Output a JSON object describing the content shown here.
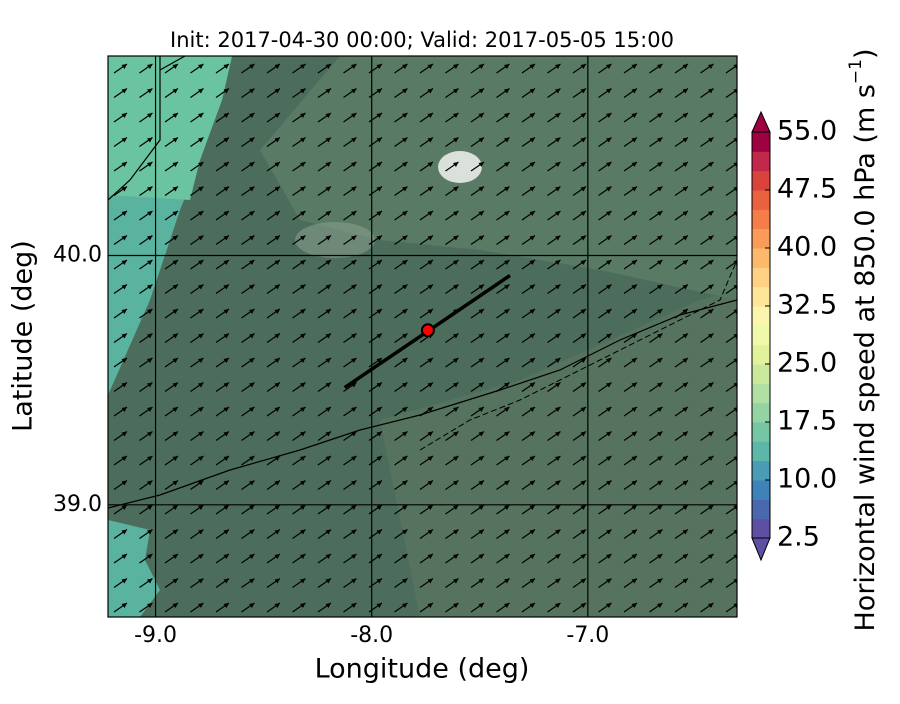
{
  "chart_data": {
    "type": "map",
    "title": "Init: 2017-04-30 00:00; Valid: 2017-05-05 15:00",
    "x_label": "Longitude (deg)",
    "y_label": "Latitude (deg)",
    "xlim": [
      -9.22,
      -6.31
    ],
    "ylim": [
      38.55,
      40.8
    ],
    "xticks": [
      {
        "value": -9,
        "label": "-9.0"
      },
      {
        "value": -8,
        "label": "-8.0"
      },
      {
        "value": -7,
        "label": "-7.0"
      }
    ],
    "yticks": [
      {
        "value": 39,
        "label": "39.0"
      },
      {
        "value": 40,
        "label": "40.0"
      }
    ],
    "grid": true,
    "cross_section": {
      "lon": [
        -8.125,
        -7.36
      ],
      "lat": [
        39.47,
        39.92
      ],
      "color": "#000000"
    },
    "point": {
      "lon": -7.74,
      "lat": 39.7,
      "color": "#ff0000"
    },
    "colorbar": {
      "label": "Horizontal wind speed at 850.0 hPa (m s",
      "label_exponent": "−1",
      "label_end": ")",
      "lim": [
        2.5,
        55
      ],
      "ticks": [
        2.5,
        {
          "value": 10,
          "label": "10.0"
        },
        17.5,
        {
          "value": 25,
          "label": "25.0"
        },
        32.5,
        {
          "value": 40,
          "label": "40.0"
        },
        47.5,
        {
          "value": 55,
          "label": "55.0"
        }
      ],
      "colors": [
        "#5e4fa2",
        "#4a68ad",
        "#3e83b8",
        "#4a9bb5",
        "#5db7a9",
        "#74c6a5",
        "#94d4a4",
        "#b1e0a2",
        "#cbe99d",
        "#e1f29a",
        "#f0f8a9",
        "#fbf5ae",
        "#fee59a",
        "#fed184",
        "#fdb96a",
        "#fa9b58",
        "#f57d4a",
        "#e9613f",
        "#d8443b",
        "#c1284a",
        "#9e0142"
      ]
    }
  }
}
